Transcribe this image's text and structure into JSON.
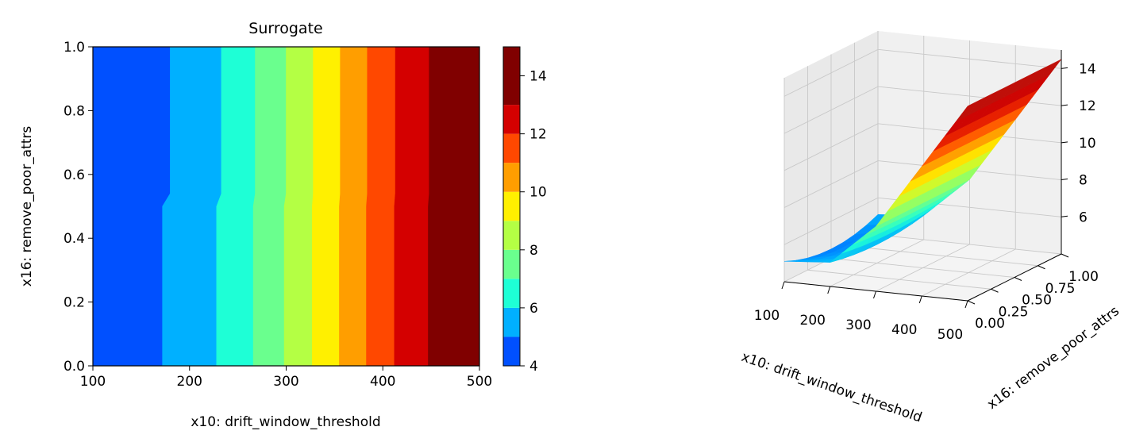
{
  "chart_data": [
    {
      "type": "heatmap",
      "subtype": "filled-contour",
      "title": "Surrogate",
      "xlabel": "x10: drift_window_threshold",
      "ylabel": "x16: remove_poor_attrs",
      "xlim": [
        100,
        500
      ],
      "ylim": [
        0,
        1
      ],
      "xticks": [
        "100",
        "200",
        "300",
        "400",
        "500"
      ],
      "yticks": [
        "0.0",
        "0.2",
        "0.4",
        "0.6",
        "0.8",
        "1.0"
      ],
      "colormap": "jet",
      "colorbar": {
        "range": [
          4,
          15
        ],
        "ticks": [
          "4",
          "6",
          "8",
          "10",
          "12",
          "14"
        ],
        "levels": [
          4,
          5,
          6,
          7,
          8,
          9,
          10,
          11,
          12,
          13,
          15
        ],
        "colors": [
          "#0050ff",
          "#00b0ff",
          "#1effd6",
          "#6aff8e",
          "#b4ff44",
          "#fff000",
          "#ff9e00",
          "#ff4800",
          "#d40000",
          "#800000"
        ]
      },
      "bands": [
        {
          "x_start": 100,
          "x_end_low": 172,
          "x_end_high": 180,
          "level": "4-5"
        },
        {
          "x_end_low": 228,
          "x_end_high": 233,
          "level": "5-6"
        },
        {
          "x_end_low": 266,
          "x_end_high": 268,
          "level": "6-7"
        },
        {
          "x_end_low": 298,
          "x_end_high": 300,
          "level": "7-8"
        },
        {
          "x_end_low": 327,
          "x_end_high": 328,
          "level": "8-9"
        },
        {
          "x_end_low": 355,
          "x_end_high": 356,
          "level": "9-10"
        },
        {
          "x_end_low": 383,
          "x_end_high": 384,
          "level": "10-11"
        },
        {
          "x_end_low": 412,
          "x_end_high": 413,
          "level": "11-12"
        },
        {
          "x_end_low": 447,
          "x_end_high": 448,
          "level": "12-13"
        },
        {
          "x_end_low": 500,
          "x_end_high": 500,
          "level": "13-15"
        }
      ]
    },
    {
      "type": "surface3d",
      "xlabel": "x10: drift_window_threshold",
      "ylabel": "x16: remove_poor_attrs",
      "xticks": [
        "100",
        "200",
        "300",
        "400",
        "500"
      ],
      "yticks": [
        "0.00",
        "0.25",
        "0.50",
        "0.75",
        "1.00"
      ],
      "zticks": [
        "6",
        "8",
        "10",
        "12",
        "14"
      ],
      "xlim": [
        100,
        500
      ],
      "ylim": [
        0,
        1
      ],
      "zlim": [
        4,
        15
      ],
      "x": [
        100,
        200,
        300,
        400,
        500
      ],
      "z_profile": [
        4.5,
        5.0,
        7.5,
        11.0,
        14.5
      ]
    }
  ]
}
